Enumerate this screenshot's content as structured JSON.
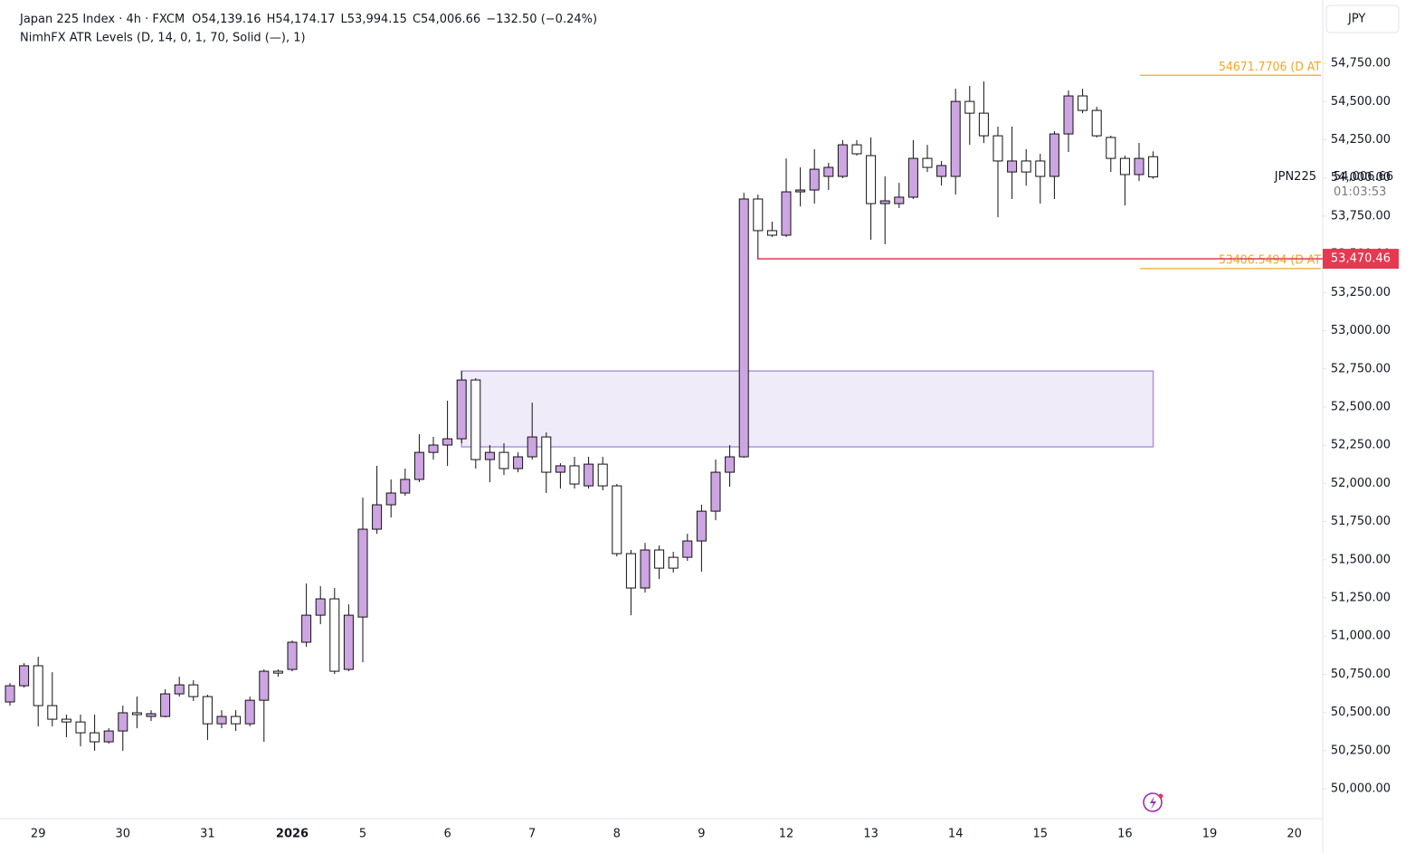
{
  "chart_data": {
    "type": "candlestick",
    "title": "Japan 225 Index · 4h · FXCM",
    "ohlc_header": [
      {
        "key": "O",
        "value": "54,139.16"
      },
      {
        "key": "H",
        "value": "54,174.17"
      },
      {
        "key": "L",
        "value": "53,994.15"
      },
      {
        "key": "C",
        "value": "54,006.66"
      }
    ],
    "change": "−132.50 (−0.24%)",
    "indicator": "NimhFX ATR Levels (D, 14, 0, 1, 70, Solid (—), 1)",
    "currency": "JPY",
    "symbol": "JPN225",
    "last_price_label": "54,006.66",
    "countdown": "01:03:53",
    "up_color": "#cda5e2",
    "down_color": "#ffffff",
    "wick_color": "#111111",
    "categories": [
      null,
      null,
      "29",
      null,
      null,
      null,
      null,
      null,
      "30",
      null,
      null,
      null,
      null,
      null,
      "31",
      null,
      null,
      null,
      null,
      null,
      "2026",
      null,
      null,
      null,
      null,
      "5",
      null,
      null,
      null,
      null,
      null,
      "6",
      null,
      null,
      null,
      null,
      null,
      "7",
      null,
      null,
      null,
      null,
      null,
      "8",
      null,
      null,
      null,
      null,
      null,
      "9",
      null,
      null,
      null,
      null,
      null,
      "12",
      null,
      null,
      null,
      null,
      null,
      "13",
      null,
      null,
      null,
      null,
      null,
      "14",
      null,
      null,
      null,
      null,
      null,
      "15",
      null,
      null,
      null,
      null,
      null,
      "16",
      null,
      null,
      null,
      null,
      null,
      "19",
      null,
      null,
      null,
      null,
      null,
      "20"
    ],
    "open": [
      50569,
      50675,
      50806,
      50545,
      50456,
      50438,
      50367,
      50308,
      50379,
      50498,
      50474,
      50474,
      50622,
      50681,
      50604,
      50426,
      50474,
      50426,
      50580,
      50770,
      50782,
      50960,
      51137,
      51244,
      50782,
      51125,
      51700,
      51860,
      51937,
      52026,
      52203,
      52251,
      52292,
      52677,
      52156,
      52203,
      52097,
      52174,
      52304,
      52073,
      52115,
      51984,
      52126,
      51984,
      51540,
      51315,
      51564,
      51516,
      51516,
      51623,
      51818,
      52073,
      52174,
      53862,
      53655,
      53625,
      53909,
      53921,
      54010,
      54010,
      54217,
      54146,
      53832,
      53832,
      53874,
      54128,
      54010,
      54010,
      54501,
      54424,
      54276,
      54039,
      54111,
      54111,
      54010,
      54288,
      54537,
      54442,
      54265,
      54128,
      54022,
      54139.16,
      null,
      null,
      null,
      null,
      null,
      null,
      null,
      null,
      null,
      null
    ],
    "high": [
      50693,
      50823,
      50865,
      50764,
      50486,
      50486,
      50486,
      50397,
      50545,
      50604,
      50515,
      50652,
      50734,
      50711,
      50616,
      50515,
      50515,
      50604,
      50782,
      50782,
      50971,
      51344,
      51327,
      51315,
      51208,
      51907,
      52115,
      52026,
      52097,
      52322,
      52304,
      52541,
      52736,
      52689,
      52251,
      52263,
      52203,
      52529,
      52334,
      52132,
      52174,
      52174,
      52174,
      51996,
      51564,
      51611,
      51593,
      51552,
      51670,
      51860,
      52156,
      52251,
      53903,
      53891,
      53714,
      54128,
      54069,
      54188,
      54099,
      54247,
      54247,
      54265,
      54010,
      53968,
      54247,
      54217,
      54111,
      54584,
      54602,
      54632,
      54336,
      54336,
      54188,
      54158,
      54306,
      54573,
      54584,
      54466,
      54276,
      54146,
      54229,
      54174.17,
      null,
      null,
      null,
      null,
      null,
      null,
      null,
      null,
      null,
      null
    ],
    "low": [
      50545,
      50663,
      50409,
      50409,
      50338,
      50278,
      50249,
      50296,
      50249,
      50397,
      50444,
      50468,
      50604,
      50575,
      50320,
      50397,
      50379,
      50409,
      50308,
      50734,
      50770,
      50930,
      51078,
      50752,
      50770,
      50829,
      51670,
      51777,
      51919,
      52008,
      52156,
      52115,
      52263,
      52097,
      52008,
      52055,
      52073,
      52156,
      51937,
      51966,
      51966,
      51966,
      51955,
      51522,
      51137,
      51285,
      51374,
      51416,
      51493,
      51422,
      51759,
      51978,
      52168,
      53465,
      53613,
      53613,
      53814,
      53832,
      53921,
      53998,
      54146,
      53595,
      53566,
      53803,
      53862,
      54039,
      53950,
      53891,
      54217,
      54229,
      53743,
      53862,
      53950,
      53832,
      53862,
      54170,
      54424,
      54265,
      54039,
      53820,
      53980,
      53994.15,
      null,
      null,
      null,
      null,
      null,
      null,
      null,
      null,
      null,
      null
    ],
    "close": [
      50675,
      50806,
      50545,
      50456,
      50438,
      50367,
      50308,
      50379,
      50498,
      50486,
      50492,
      50622,
      50681,
      50604,
      50426,
      50474,
      50426,
      50580,
      50770,
      50758,
      50960,
      51137,
      51244,
      50770,
      51137,
      51700,
      51860,
      51937,
      52026,
      52203,
      52251,
      52292,
      52677,
      52156,
      52203,
      52097,
      52174,
      52304,
      52073,
      52115,
      51996,
      52126,
      51984,
      51540,
      51315,
      51564,
      51445,
      51445,
      51623,
      51818,
      52073,
      52174,
      53862,
      53655,
      53625,
      53909,
      53921,
      54057,
      54069,
      54217,
      54158,
      53832,
      53850,
      53874,
      54128,
      54069,
      54081,
      54501,
      54424,
      54276,
      54111,
      54111,
      54039,
      54010,
      54288,
      54537,
      54442,
      54276,
      54128,
      54022,
      54128,
      54006.66,
      null,
      null,
      null,
      null,
      null,
      null,
      null,
      null,
      null,
      null
    ],
    "zone": {
      "top": 52736,
      "bottom": 52239,
      "color": "#7e57c2"
    },
    "levels": [
      {
        "value": 54671.7706,
        "label": "54671.7706 (D AT",
        "color": "#f5a623"
      },
      {
        "value": 53406.5494,
        "label": "53406.5494 (D AT",
        "color": "#f5a623"
      }
    ],
    "price_line": {
      "value": 53470.46,
      "label": "53,470.46",
      "color": "#e53950"
    },
    "ylim": [
      49805,
      55165
    ],
    "yticks": [
      {
        "value": 50000,
        "label": "50,000.00"
      },
      {
        "value": 50250,
        "label": "50,250.00"
      },
      {
        "value": 50500,
        "label": "50,500.00"
      },
      {
        "value": 50750,
        "label": "50,750.00"
      },
      {
        "value": 51000,
        "label": "51,000.00"
      },
      {
        "value": 51250,
        "label": "51,250.00"
      },
      {
        "value": 51500,
        "label": "51,500.00"
      },
      {
        "value": 51750,
        "label": "51,750.00"
      },
      {
        "value": 52000,
        "label": "52,000.00"
      },
      {
        "value": 52250,
        "label": "52,250.00"
      },
      {
        "value": 52500,
        "label": "52,500.00"
      },
      {
        "value": 52750,
        "label": "52,750.00"
      },
      {
        "value": 53000,
        "label": "53,000.00"
      },
      {
        "value": 53250,
        "label": "53,250.00"
      },
      {
        "value": 53500,
        "label": "53,500.00"
      },
      {
        "value": 53750,
        "label": "53,750.00"
      },
      {
        "value": 54000,
        "label": "54,000.00"
      },
      {
        "value": 54250,
        "label": "54,250.00"
      },
      {
        "value": 54500,
        "label": "54,500.00"
      },
      {
        "value": 54750,
        "label": "54,750.00"
      }
    ]
  }
}
